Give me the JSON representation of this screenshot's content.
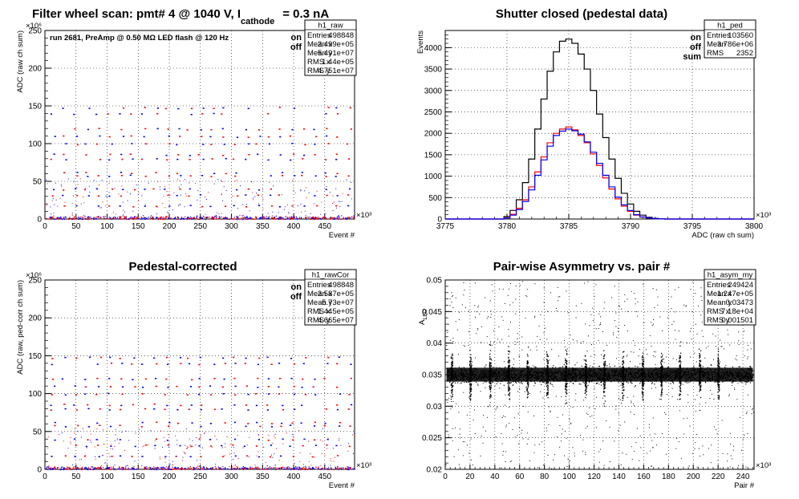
{
  "colors": {
    "on": "#ff0000",
    "off": "#0000ff",
    "sum": "#000000"
  },
  "chart_data": [
    {
      "id": "raw",
      "type": "scatter",
      "title_main": "Filter wheel scan: pmt#   4 @  1040 V, I",
      "title_sub": "cathode",
      "title_tail": "= 0.3 nA",
      "annotation": "run 2681, PreAmp @ 0.50 MΩ  LED flash @  120 Hz",
      "ylabel": "ADC (raw ch sum)",
      "xlabel": "Event #",
      "x_multiplier": "×10³",
      "y_multiplier": "×10⁶",
      "xlim": [
        0,
        498
      ],
      "ylim": [
        0,
        250
      ],
      "xticks": [
        0,
        50,
        100,
        150,
        200,
        250,
        300,
        350,
        400,
        450
      ],
      "yticks": [
        0,
        50,
        100,
        150,
        200,
        250
      ],
      "levels": [
        3,
        18,
        32,
        40,
        58,
        62,
        80,
        86,
        100,
        110,
        120,
        140,
        148
      ],
      "legend": [
        {
          "label": "on",
          "color": "#ff0000"
        },
        {
          "label": "off",
          "color": "#0000ff"
        }
      ],
      "stats": {
        "name": "h1_raw",
        "rows": [
          [
            "Entries",
            "498848"
          ],
          [
            "Mean x",
            "2.499e+05"
          ],
          [
            "Mean y",
            "5.491e+07"
          ],
          [
            "RMS x",
            "1.44e+05"
          ],
          [
            "RMS y",
            "4.751e+07"
          ]
        ]
      }
    },
    {
      "id": "ped",
      "type": "line",
      "title": "Shutter closed (pedestal data)",
      "ylabel": "Events",
      "xlabel": "ADC (raw ch sum)",
      "x_multiplier": "×10³",
      "xlim": [
        3775,
        3800
      ],
      "ylim": [
        0,
        4400
      ],
      "xticks": [
        3775,
        3780,
        3785,
        3790,
        3795,
        3800
      ],
      "yticks": [
        0,
        500,
        1000,
        1500,
        2000,
        2500,
        3000,
        3500,
        4000
      ],
      "x": [
        3779.5,
        3780,
        3780.5,
        3781,
        3781.5,
        3782,
        3782.5,
        3783,
        3783.5,
        3784,
        3784.5,
        3785,
        3785.5,
        3786,
        3786.5,
        3787,
        3787.5,
        3788,
        3788.5,
        3789,
        3789.5,
        3790,
        3790.5,
        3791,
        3791.5,
        3792,
        3792.5,
        3793
      ],
      "series": [
        {
          "name": "sum",
          "color": "#000000",
          "values": [
            0,
            60,
            200,
            450,
            850,
            1400,
            2100,
            2800,
            3450,
            3900,
            4150,
            4200,
            4100,
            3850,
            3500,
            3000,
            2450,
            1900,
            1400,
            950,
            600,
            350,
            180,
            90,
            40,
            15,
            5,
            0
          ]
        },
        {
          "name": "on",
          "color": "#ff0000",
          "values": [
            0,
            30,
            110,
            250,
            450,
            750,
            1100,
            1450,
            1780,
            2000,
            2100,
            2150,
            2080,
            1950,
            1780,
            1520,
            1250,
            960,
            700,
            470,
            300,
            180,
            90,
            45,
            20,
            8,
            3,
            0
          ]
        },
        {
          "name": "off",
          "color": "#0000ff",
          "values": [
            0,
            25,
            90,
            220,
            410,
            680,
            1020,
            1380,
            1700,
            1950,
            2050,
            2100,
            2060,
            1980,
            1800,
            1560,
            1300,
            1020,
            750,
            510,
            330,
            200,
            100,
            50,
            22,
            9,
            3,
            0
          ]
        }
      ],
      "legend": [
        {
          "label": "on",
          "color": "#ff0000"
        },
        {
          "label": "off",
          "color": "#0000ff"
        },
        {
          "label": "sum",
          "color": "#000000"
        }
      ],
      "stats": {
        "name": "h1_ped",
        "rows": [
          [
            "Entries",
            "103560"
          ],
          [
            "Mean",
            "3.786e+06"
          ],
          [
            "RMS",
            "2352"
          ]
        ]
      }
    },
    {
      "id": "rawcor",
      "type": "scatter",
      "title": "Pedestal-corrected",
      "ylabel": "ADC (raw, ped-corr ch sum)",
      "xlabel": "Event #",
      "x_multiplier": "×10³",
      "y_multiplier": "×10⁶",
      "xlim": [
        0,
        498
      ],
      "ylim": [
        0,
        250
      ],
      "xticks": [
        0,
        50,
        100,
        150,
        200,
        250,
        300,
        350,
        400,
        450
      ],
      "yticks": [
        0,
        50,
        100,
        150,
        200,
        250
      ],
      "levels": [
        3,
        18,
        32,
        40,
        58,
        62,
        80,
        86,
        100,
        110,
        120,
        140,
        148
      ],
      "legend": [
        {
          "label": "on",
          "color": "#ff0000"
        },
        {
          "label": "off",
          "color": "#0000ff"
        }
      ],
      "stats": {
        "name": "h1_rawCor",
        "rows": [
          [
            "Entries",
            "498848"
          ],
          [
            "Mean x",
            "2.587e+05"
          ],
          [
            "Mean y",
            "5.73e+07"
          ],
          [
            "RMS x",
            "1.445e+05"
          ],
          [
            "RMS y",
            "4.665e+07"
          ]
        ]
      }
    },
    {
      "id": "asym",
      "type": "scatter",
      "title": "Pair-wise Asymmetry vs. pair #",
      "ylabel_main": "A",
      "ylabel_sub": "LED",
      "xlabel": "Pair #",
      "x_multiplier": "×10³",
      "xlim": [
        0,
        249
      ],
      "ylim": [
        0.02,
        0.05
      ],
      "xticks": [
        0,
        20,
        40,
        60,
        80,
        100,
        120,
        140,
        160,
        180,
        200,
        220,
        240
      ],
      "yticks": [
        0.02,
        0.025,
        0.03,
        0.035,
        0.04,
        0.045,
        0.05
      ],
      "band_center": 0.035,
      "spike_x": [
        5,
        20,
        36,
        51,
        66,
        82,
        97,
        113,
        128,
        143,
        159,
        174,
        189,
        205,
        220
      ],
      "stats": {
        "name": "h1_asym_my",
        "rows": [
          [
            "Entries",
            "249424"
          ],
          [
            "Mean x",
            "1.247e+05"
          ],
          [
            "Mean y",
            "0.03473"
          ],
          [
            "RMS x",
            "7.18e+04"
          ],
          [
            "RMS y",
            "0.001501"
          ]
        ]
      }
    }
  ]
}
